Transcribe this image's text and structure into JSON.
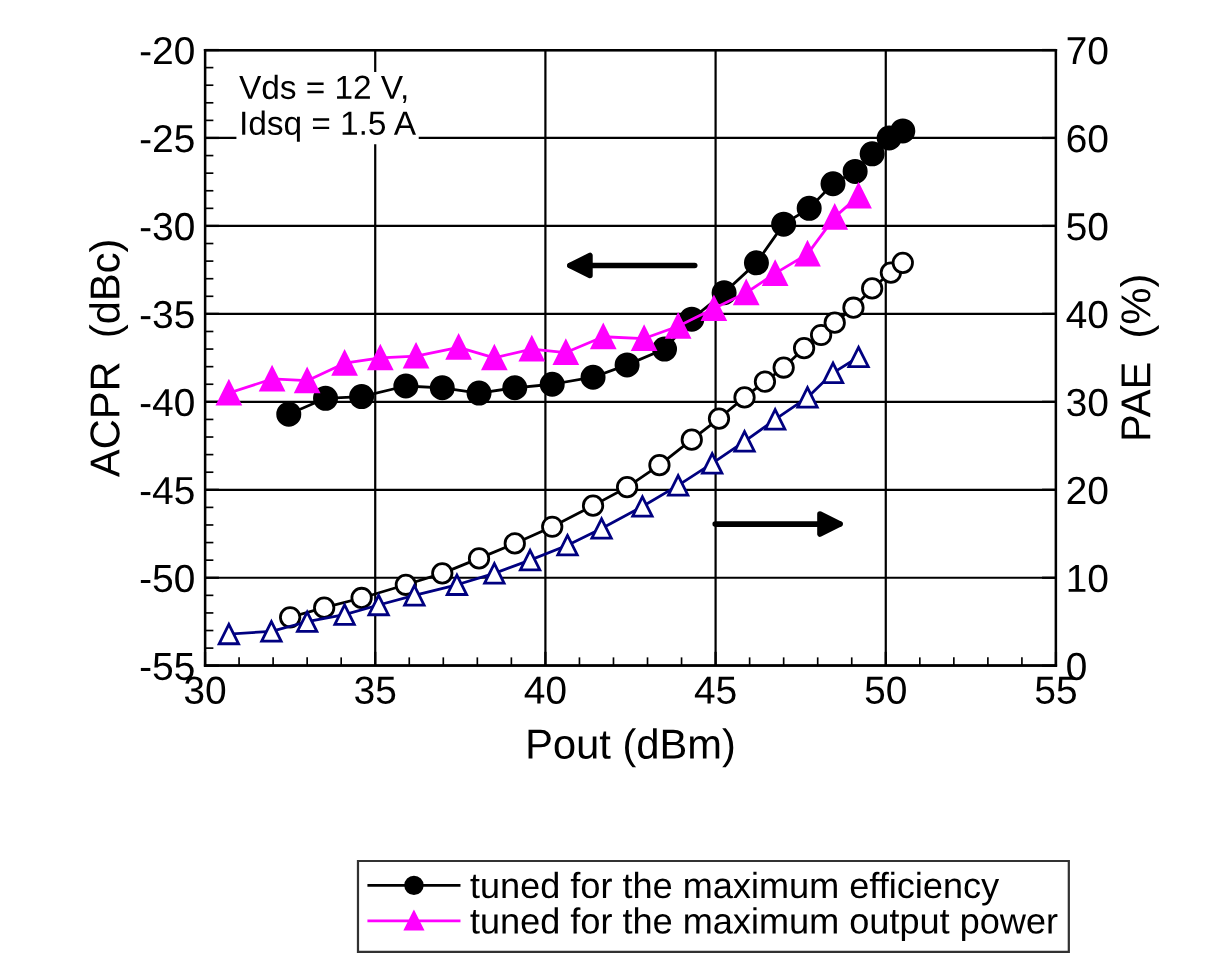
{
  "chart_data": {
    "type": "line",
    "xlabel": "Pout (dBm)",
    "ylabel": "ACPR  (dBc)",
    "y2label": "PAE  (%)",
    "annotations": [
      "Vds = 12 V,\nIdsq = 1.5 A"
    ],
    "xlim": [
      30,
      55
    ],
    "xticks": [
      30,
      35,
      40,
      45,
      50,
      55
    ],
    "ylim": [
      -55,
      -20
    ],
    "yticks": [
      -55,
      -50,
      -45,
      -40,
      -35,
      -30,
      -25,
      -20
    ],
    "y2lim": [
      0,
      70
    ],
    "y2ticks": [
      0,
      10,
      20,
      30,
      40,
      50,
      60,
      70
    ],
    "grid": true,
    "legend": "bottom",
    "series": [
      {
        "name": "tuned for the maximum efficiency",
        "color": "#000000",
        "marker": "circle",
        "x": [
          32.46,
          33.54,
          34.6,
          35.9,
          36.97,
          38.05,
          39.1,
          40.2,
          41.4,
          42.4,
          43.5,
          44.3,
          45.25,
          46.2,
          47.0,
          47.75,
          48.45,
          49.1,
          49.6,
          50.1,
          50.5
        ],
        "values": [
          -40.7,
          -39.8,
          -39.7,
          -39.1,
          -39.2,
          -39.5,
          -39.2,
          -39.0,
          -38.6,
          -37.9,
          -37.0,
          -35.3,
          -33.8,
          -32.1,
          -29.9,
          -29.0,
          -27.6,
          -26.9,
          -25.9,
          -25.0,
          -24.6
        ]
      },
      {
        "name": "tuned for the maximum output power",
        "color": "#ff00ff",
        "marker": "triangle",
        "x": [
          30.7,
          31.97,
          33.0,
          34.1,
          35.15,
          36.2,
          37.45,
          38.5,
          39.6,
          40.6,
          41.7,
          42.9,
          43.9,
          44.95,
          45.9,
          46.75,
          47.7,
          48.5,
          49.2
        ],
        "values": [
          -39.5,
          -38.7,
          -38.8,
          -37.8,
          -37.5,
          -37.4,
          -36.9,
          -37.5,
          -37.0,
          -37.2,
          -36.3,
          -36.4,
          -35.7,
          -34.7,
          -33.8,
          -32.7,
          -31.6,
          -29.5,
          -28.3
        ]
      },
      {
        "color": "#000000",
        "marker": "circle",
        "axis": "y2",
        "x": [
          32.5,
          33.5,
          34.6,
          35.9,
          36.97,
          38.05,
          39.1,
          40.2,
          41.4,
          42.4,
          43.35,
          44.3,
          45.1,
          45.85,
          46.45,
          47.0,
          47.6,
          48.1,
          48.5,
          49.05,
          49.6,
          50.15,
          50.5
        ],
        "values": [
          5.5,
          6.6,
          7.7,
          9.2,
          10.5,
          12.2,
          13.9,
          15.8,
          18.2,
          20.3,
          22.8,
          25.7,
          28.1,
          30.5,
          32.3,
          33.9,
          36.1,
          37.6,
          39.0,
          40.7,
          42.9,
          44.7,
          45.8
        ]
      },
      {
        "color": "#000080",
        "marker": "triangle",
        "axis": "y2",
        "x": [
          30.7,
          31.95,
          33.0,
          34.1,
          35.1,
          36.15,
          37.4,
          38.5,
          39.55,
          40.65,
          41.65,
          42.85,
          43.9,
          44.9,
          45.85,
          46.75,
          47.7,
          48.45,
          49.2
        ],
        "values": [
          3.6,
          3.9,
          5.0,
          5.8,
          6.9,
          8.0,
          9.2,
          10.5,
          12.0,
          13.7,
          15.6,
          18.1,
          20.5,
          23.0,
          25.5,
          28.0,
          30.5,
          33.3,
          35.1
        ]
      }
    ]
  }
}
